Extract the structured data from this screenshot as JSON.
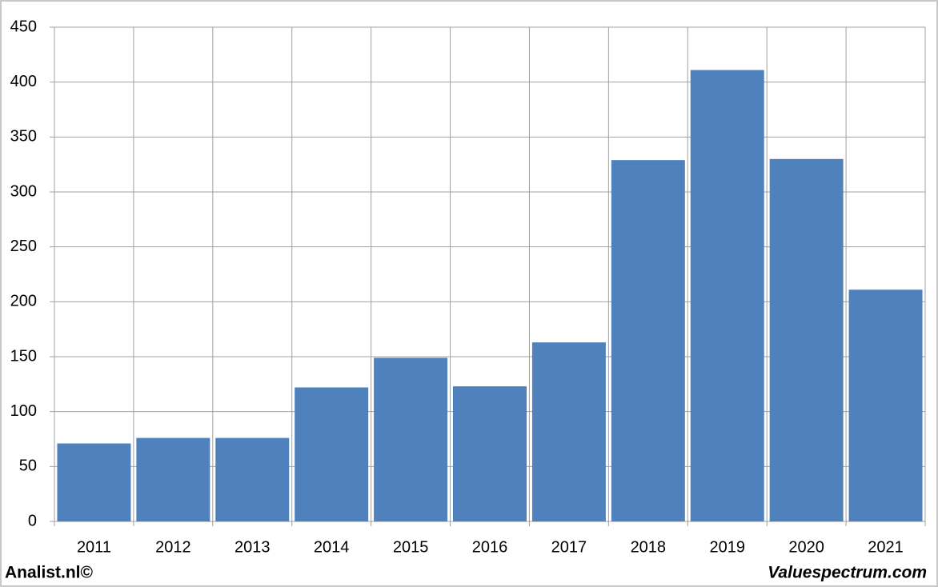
{
  "chart_data": {
    "type": "bar",
    "categories": [
      "2011",
      "2012",
      "2013",
      "2014",
      "2015",
      "2016",
      "2017",
      "2018",
      "2019",
      "2020",
      "2021"
    ],
    "values": [
      71,
      76,
      76,
      122,
      149,
      123,
      163,
      329,
      411,
      330,
      211
    ],
    "color": "#4f81bd",
    "ylim": [
      0,
      450
    ],
    "yticks": [
      0,
      50,
      100,
      150,
      200,
      250,
      300,
      350,
      400,
      450
    ],
    "grid": true
  },
  "footer": {
    "left": "Analist.nl©",
    "right": "Valuespectrum.com"
  }
}
